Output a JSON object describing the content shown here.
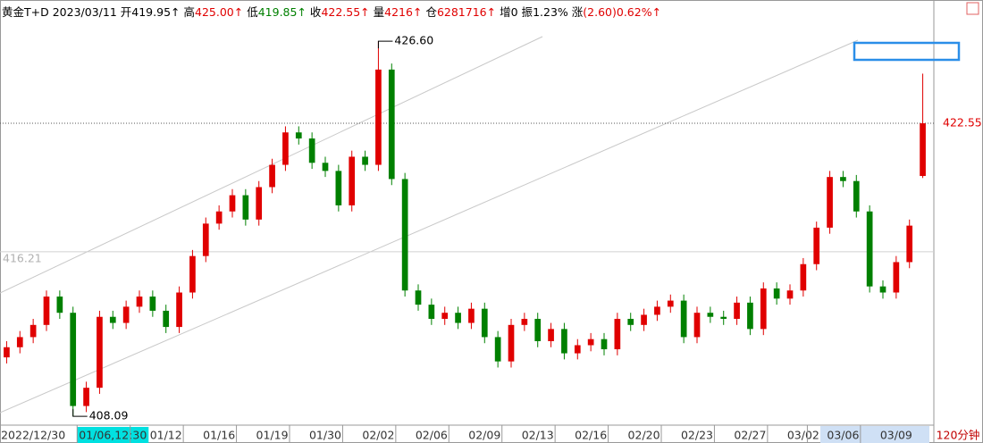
{
  "header": {
    "title": "黄金T+D",
    "date": "2023/03/11",
    "items": [
      {
        "label": "开",
        "value": "419.95↑",
        "color": "#000000"
      },
      {
        "label": "高",
        "value": "425.00↑",
        "color": "#e00000"
      },
      {
        "label": "低",
        "value": "419.85↑",
        "color": "#008000"
      },
      {
        "label": "收",
        "value": "422.55↑",
        "color": "#e00000"
      },
      {
        "label": "量",
        "value": "4216↑",
        "color": "#e00000"
      },
      {
        "label": "仓",
        "value": "6281716↑",
        "color": "#e00000"
      },
      {
        "label": "增",
        "value": "0",
        "color": "#000000"
      },
      {
        "label": "振",
        "value": "1.23%",
        "color": "#000000"
      },
      {
        "label": "涨",
        "value": "(2.60)0.62%↑",
        "color": "#e00000"
      }
    ]
  },
  "chart_data": {
    "type": "candlestick",
    "period": "120分钟",
    "up_color": "#e00000",
    "down_color": "#008000",
    "ylim": [
      407.7,
      427.84
    ],
    "last_price": 422.55,
    "reference_line": 416.21,
    "annotations": [
      {
        "value": 426.6,
        "label": "426.60",
        "index": 28
      },
      {
        "value": 408.09,
        "label": "408.09",
        "index": 5
      }
    ],
    "highlighted_category": 8,
    "categories": [
      null,
      null,
      "2022/12/30",
      null,
      null,
      null,
      null,
      null,
      "01/06,12:30",
      null,
      null,
      null,
      "01/12",
      null,
      null,
      null,
      "01/16",
      null,
      null,
      null,
      "01/19",
      null,
      null,
      null,
      "01/30",
      null,
      null,
      null,
      "02/02",
      null,
      null,
      null,
      "02/06",
      null,
      null,
      null,
      "02/09",
      null,
      null,
      null,
      "02/13",
      null,
      null,
      null,
      "02/16",
      null,
      null,
      null,
      "02/20",
      null,
      null,
      null,
      "02/23",
      null,
      null,
      null,
      "02/27",
      null,
      null,
      null,
      "03/02",
      null,
      null,
      "03/06",
      null,
      null,
      null,
      "03/09",
      null,
      null
    ],
    "open": [
      411.0,
      411.5,
      412.0,
      412.6,
      414.0,
      413.2,
      408.6,
      409.5,
      413.0,
      412.7,
      413.5,
      414.0,
      413.3,
      412.5,
      414.2,
      416.0,
      417.6,
      418.2,
      419.0,
      417.8,
      419.4,
      420.5,
      422.1,
      421.8,
      420.6,
      420.2,
      418.5,
      420.9,
      420.5,
      425.2,
      419.8,
      414.3,
      413.6,
      412.9,
      413.2,
      412.7,
      413.4,
      412.0,
      410.8,
      412.6,
      412.9,
      411.8,
      412.4,
      411.2,
      411.6,
      411.9,
      411.4,
      412.9,
      412.6,
      413.1,
      413.5,
      413.8,
      412.0,
      413.2,
      413.0,
      412.9,
      413.7,
      412.4,
      414.4,
      413.9,
      414.3,
      415.6,
      417.4,
      419.9,
      419.7,
      418.2,
      414.5,
      414.2,
      415.7,
      419.95
    ],
    "high": [
      411.8,
      412.3,
      412.9,
      414.3,
      414.3,
      413.5,
      409.8,
      413.3,
      413.3,
      413.8,
      414.3,
      414.3,
      413.6,
      414.5,
      416.3,
      417.9,
      418.5,
      419.3,
      419.3,
      419.7,
      420.8,
      422.4,
      422.4,
      422.1,
      420.9,
      420.5,
      421.2,
      421.2,
      426.6,
      425.5,
      420.1,
      414.6,
      413.9,
      413.5,
      413.5,
      413.7,
      413.7,
      412.3,
      412.9,
      413.2,
      413.2,
      412.7,
      412.7,
      411.9,
      412.2,
      412.2,
      413.2,
      413.2,
      413.4,
      413.8,
      414.1,
      414.1,
      413.5,
      413.5,
      413.3,
      414.0,
      414.0,
      414.7,
      414.7,
      414.6,
      415.9,
      417.7,
      420.2,
      420.2,
      420.0,
      418.5,
      414.8,
      416.0,
      417.8,
      425.0
    ],
    "low": [
      410.7,
      411.2,
      411.7,
      412.3,
      412.9,
      408.09,
      408.3,
      409.2,
      412.4,
      412.4,
      413.2,
      413.0,
      412.2,
      412.2,
      413.9,
      415.7,
      417.3,
      417.9,
      417.5,
      417.5,
      419.1,
      420.2,
      421.5,
      420.3,
      419.9,
      418.2,
      418.2,
      420.2,
      420.2,
      419.5,
      414.0,
      413.3,
      412.6,
      412.6,
      412.4,
      412.4,
      411.7,
      410.5,
      410.5,
      412.3,
      411.5,
      411.5,
      410.9,
      410.9,
      411.3,
      411.1,
      411.1,
      412.3,
      412.3,
      412.8,
      413.2,
      411.7,
      411.7,
      412.7,
      412.6,
      412.6,
      412.1,
      412.1,
      413.6,
      413.6,
      414.0,
      415.3,
      417.1,
      419.4,
      417.9,
      414.2,
      413.9,
      413.9,
      415.4,
      419.85
    ],
    "close": [
      411.5,
      412.0,
      412.6,
      414.0,
      413.2,
      408.6,
      409.5,
      413.0,
      412.7,
      413.5,
      414.0,
      413.3,
      412.5,
      414.2,
      416.0,
      417.6,
      418.2,
      419.0,
      417.8,
      419.4,
      420.5,
      422.1,
      421.8,
      420.6,
      420.2,
      418.5,
      420.9,
      420.5,
      425.2,
      419.8,
      414.3,
      413.6,
      412.9,
      413.2,
      412.7,
      413.4,
      412.0,
      410.8,
      412.6,
      412.9,
      411.8,
      412.4,
      411.2,
      411.6,
      411.9,
      411.4,
      412.9,
      412.6,
      413.1,
      413.5,
      413.8,
      412.0,
      413.2,
      413.0,
      412.9,
      413.7,
      412.4,
      414.4,
      413.9,
      414.3,
      415.6,
      417.4,
      419.9,
      419.7,
      418.2,
      414.5,
      414.2,
      415.7,
      417.5,
      422.55
    ]
  }
}
